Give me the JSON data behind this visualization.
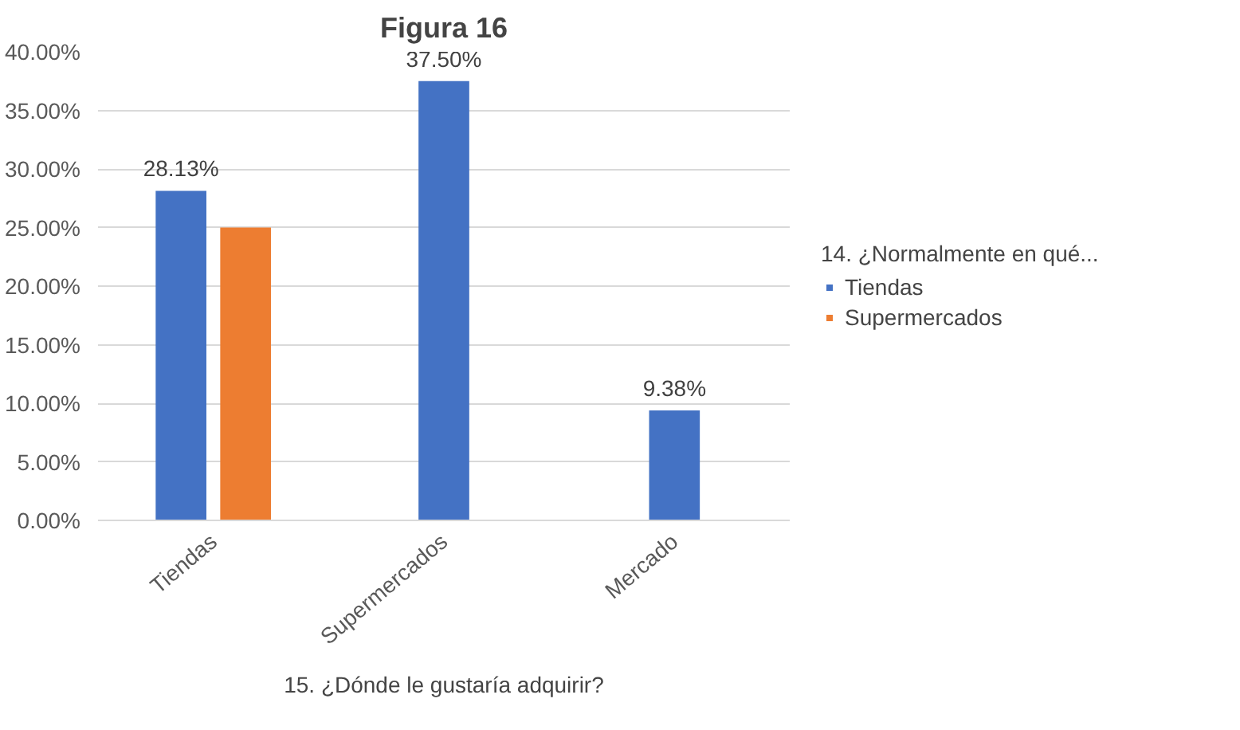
{
  "chart_data": {
    "type": "bar",
    "title": "Figura 16",
    "xlabel": "15. ¿Dónde le gustaría adquirir?",
    "legend_title": "14. ¿Normalmente en qué...",
    "categories": [
      "Tiendas",
      "Supermercados",
      "Mercado"
    ],
    "series": [
      {
        "name": "Tiendas",
        "color": "#4472c4",
        "values": [
          28.13,
          37.5,
          9.38
        ],
        "value_labels": [
          "28.13%",
          "37.50%",
          "9.38%"
        ]
      },
      {
        "name": "Supermercados",
        "color": "#ed7d31",
        "values": [
          25,
          null,
          null
        ],
        "value_labels": [
          null,
          null,
          null
        ]
      }
    ],
    "ylim": [
      0,
      40
    ],
    "yticks": [
      {
        "value": 0,
        "label": "0.00%"
      },
      {
        "value": 5,
        "label": "5.00%"
      },
      {
        "value": 10,
        "label": "10.00%"
      },
      {
        "value": 15,
        "label": "15.00%"
      },
      {
        "value": 20,
        "label": "20.00%"
      },
      {
        "value": 25,
        "label": "25.00%"
      },
      {
        "value": 30,
        "label": "30.00%"
      },
      {
        "value": 35,
        "label": "35.00%"
      },
      {
        "value": 40,
        "label": "40.00%"
      }
    ],
    "grid": "y",
    "legend": "right"
  }
}
